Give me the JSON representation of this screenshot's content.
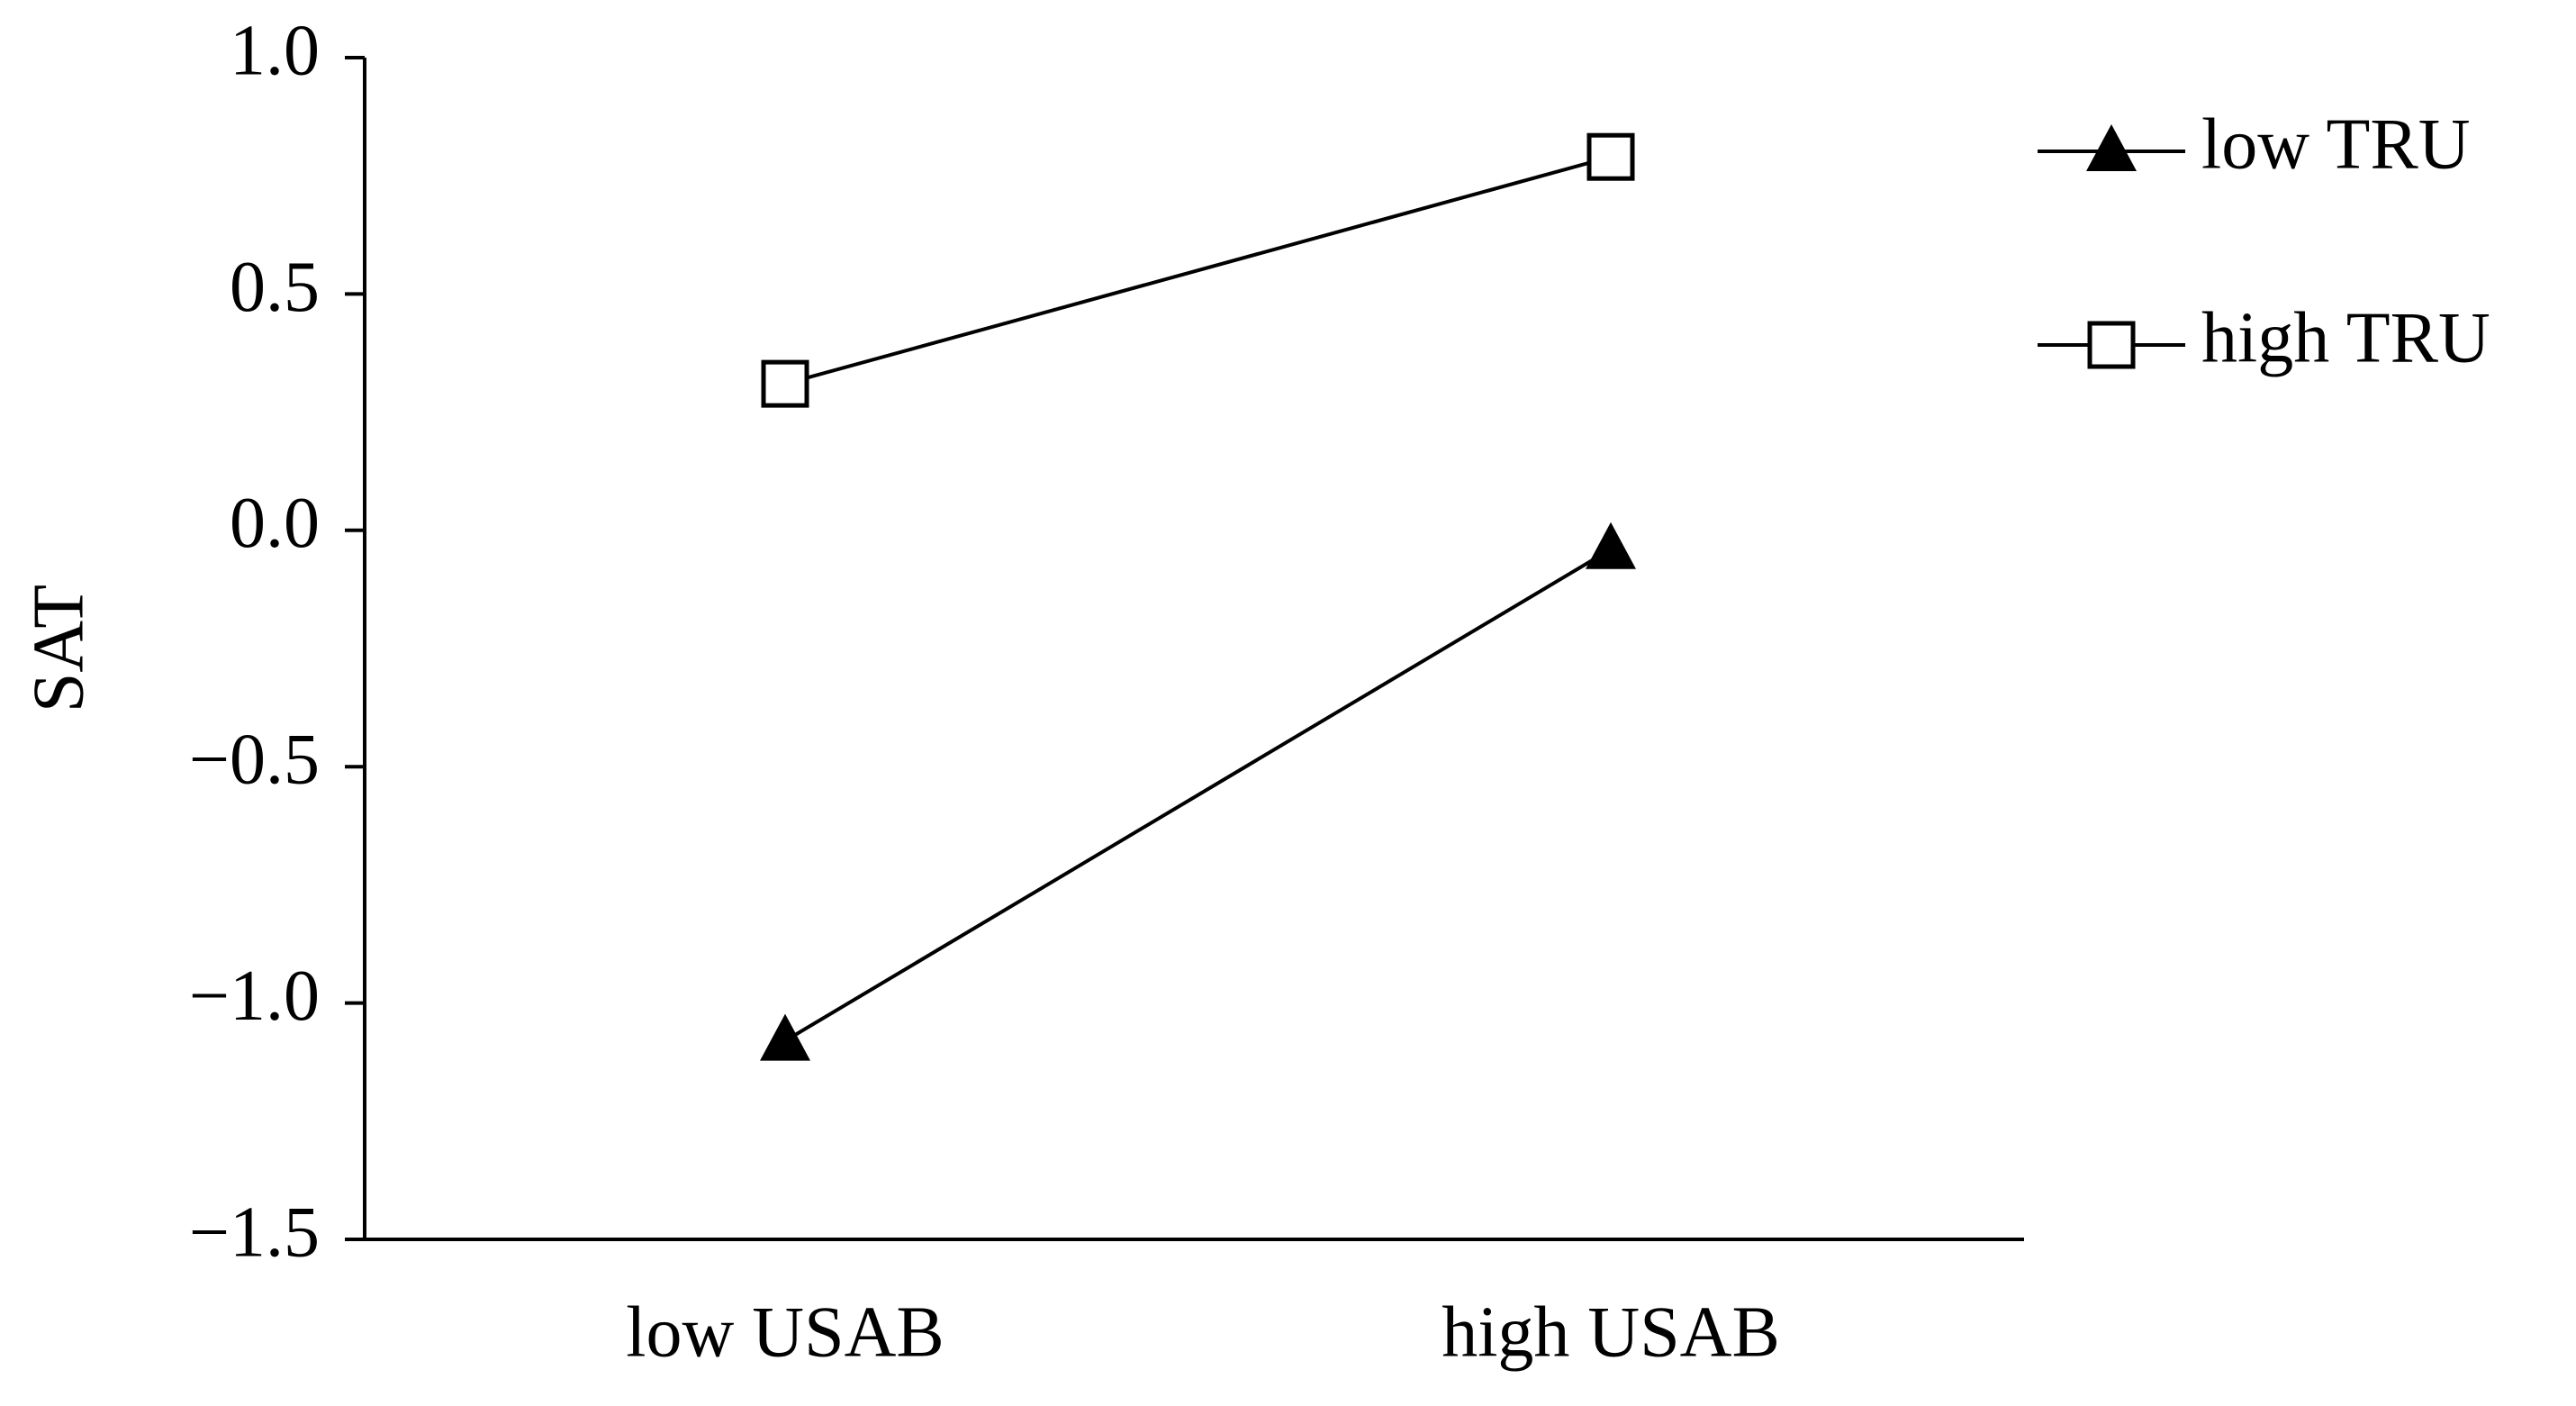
{
  "chart_data": {
    "type": "line",
    "y_label": "SAT",
    "categories": [
      "low USAB",
      "high USAB"
    ],
    "series": [
      {
        "name": "low TRU",
        "color": "#000000",
        "marker": "triangle",
        "values": [
          -1.08,
          -0.04
        ]
      },
      {
        "name": "high TRU",
        "color": "#000000",
        "marker": "square",
        "values": [
          0.31,
          0.79
        ]
      }
    ],
    "ylim": [
      -1.5,
      1.0
    ],
    "yticks": [
      {
        "value": -1.5,
        "label": "−1.5"
      },
      {
        "value": -1.0,
        "label": "−1.0"
      },
      {
        "value": -0.5,
        "label": "−0.5"
      },
      {
        "value": 0.0,
        "label": "0.0"
      },
      0.5,
      {
        "value": 1.0,
        "label": "1.0"
      }
    ],
    "grid": false,
    "legend": "right"
  }
}
